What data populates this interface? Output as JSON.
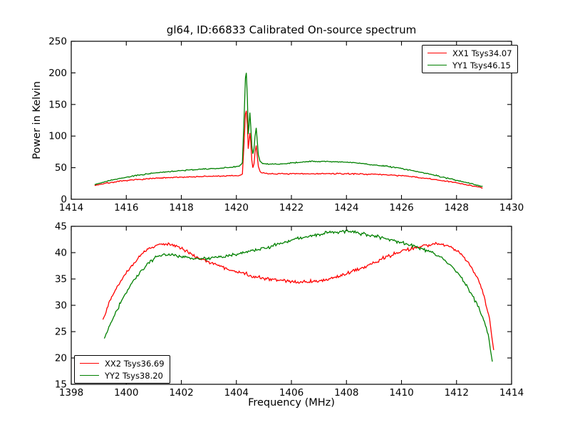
{
  "figure": {
    "title": "gl64, ID:66833 Calibrated On-source spectrum",
    "background_color": "#ffffff",
    "text_color": "#000000"
  },
  "chart_data": [
    {
      "type": "line",
      "position": "top",
      "xlabel": "",
      "ylabel": "Power in Kelvin",
      "xlim": [
        1414,
        1430
      ],
      "ylim": [
        0,
        250
      ],
      "xticks": [
        1414,
        1416,
        1418,
        1420,
        1422,
        1424,
        1426,
        1428,
        1430
      ],
      "yticks": [
        0,
        50,
        100,
        150,
        200,
        250
      ],
      "grid": false,
      "legend": {
        "position": "top-right"
      },
      "series": [
        {
          "name": "XX1 Tsys34.07",
          "color": "#ff0000",
          "noise": 0.45,
          "points": [
            [
              1414.85,
              22
            ],
            [
              1415.2,
              25
            ],
            [
              1415.6,
              27.5
            ],
            [
              1416.0,
              29.5
            ],
            [
              1416.5,
              31.5
            ],
            [
              1417.0,
              33
            ],
            [
              1417.5,
              34
            ],
            [
              1418.0,
              35
            ],
            [
              1418.6,
              35.8
            ],
            [
              1419.2,
              36.5
            ],
            [
              1419.8,
              37
            ],
            [
              1420.1,
              37.5
            ],
            [
              1420.22,
              40
            ],
            [
              1420.28,
              90
            ],
            [
              1420.33,
              135
            ],
            [
              1420.36,
              140
            ],
            [
              1420.4,
              118
            ],
            [
              1420.43,
              80
            ],
            [
              1420.46,
              92
            ],
            [
              1420.49,
              105
            ],
            [
              1420.52,
              93
            ],
            [
              1420.56,
              62
            ],
            [
              1420.6,
              50
            ],
            [
              1420.64,
              56
            ],
            [
              1420.68,
              75
            ],
            [
              1420.72,
              85
            ],
            [
              1420.76,
              68
            ],
            [
              1420.8,
              52
            ],
            [
              1420.86,
              44
            ],
            [
              1420.95,
              41.5
            ],
            [
              1421.2,
              40.5
            ],
            [
              1421.6,
              40.3
            ],
            [
              1422.0,
              40.2
            ],
            [
              1422.6,
              40.3
            ],
            [
              1423.2,
              40.5
            ],
            [
              1423.8,
              40.4
            ],
            [
              1424.4,
              40.2
            ],
            [
              1425.0,
              39.5
            ],
            [
              1425.6,
              38.5
            ],
            [
              1426.2,
              36.5
            ],
            [
              1426.8,
              33.5
            ],
            [
              1427.4,
              30
            ],
            [
              1428.0,
              26
            ],
            [
              1428.5,
              22
            ],
            [
              1428.95,
              18
            ]
          ]
        },
        {
          "name": "YY1 Tsys46.15",
          "color": "#008000",
          "noise": 0.45,
          "points": [
            [
              1414.85,
              23.5
            ],
            [
              1415.2,
              27.5
            ],
            [
              1415.6,
              31.5
            ],
            [
              1416.0,
              35
            ],
            [
              1416.5,
              38.5
            ],
            [
              1417.0,
              41.5
            ],
            [
              1417.5,
              43.5
            ],
            [
              1418.0,
              45.5
            ],
            [
              1418.6,
              47
            ],
            [
              1419.2,
              48.5
            ],
            [
              1419.8,
              50.5
            ],
            [
              1420.1,
              52
            ],
            [
              1420.22,
              58
            ],
            [
              1420.28,
              130
            ],
            [
              1420.33,
              192
            ],
            [
              1420.36,
              200
            ],
            [
              1420.4,
              160
            ],
            [
              1420.43,
              103
            ],
            [
              1420.46,
              116
            ],
            [
              1420.49,
              137
            ],
            [
              1420.52,
              118
            ],
            [
              1420.56,
              85
            ],
            [
              1420.6,
              72
            ],
            [
              1420.64,
              80
            ],
            [
              1420.68,
              100
            ],
            [
              1420.72,
              113
            ],
            [
              1420.76,
              92
            ],
            [
              1420.8,
              70
            ],
            [
              1420.86,
              60
            ],
            [
              1420.95,
              56.5
            ],
            [
              1421.2,
              55.5
            ],
            [
              1421.6,
              56
            ],
            [
              1422.0,
              57.5
            ],
            [
              1422.6,
              59.5
            ],
            [
              1423.0,
              60
            ],
            [
              1423.5,
              59.5
            ],
            [
              1424.0,
              58.5
            ],
            [
              1424.5,
              57
            ],
            [
              1425.0,
              54.5
            ],
            [
              1425.5,
              52
            ],
            [
              1426.0,
              48.5
            ],
            [
              1426.5,
              44.5
            ],
            [
              1427.0,
              40
            ],
            [
              1427.5,
              35
            ],
            [
              1428.0,
              30
            ],
            [
              1428.5,
              25
            ],
            [
              1428.95,
              20.5
            ]
          ]
        }
      ]
    },
    {
      "type": "line",
      "position": "bottom",
      "xlabel": "Frequency (MHz)",
      "ylabel": "",
      "xlim": [
        1398,
        1414
      ],
      "ylim": [
        15,
        45
      ],
      "xticks": [
        1398,
        1400,
        1402,
        1404,
        1406,
        1408,
        1410,
        1412,
        1414
      ],
      "yticks": [
        15,
        20,
        25,
        30,
        35,
        40,
        45
      ],
      "grid": false,
      "legend": {
        "position": "bottom-left"
      },
      "series": [
        {
          "name": "XX2 Tsys36.69",
          "color": "#ff0000",
          "noise": 0.17,
          "points": [
            [
              1399.15,
              27.3
            ],
            [
              1399.3,
              29.5
            ],
            [
              1399.5,
              31.8
            ],
            [
              1399.7,
              33.8
            ],
            [
              1399.95,
              35.8
            ],
            [
              1400.2,
              37.6
            ],
            [
              1400.5,
              39.3
            ],
            [
              1400.8,
              40.7
            ],
            [
              1401.1,
              41.4
            ],
            [
              1401.35,
              41.7
            ],
            [
              1401.6,
              41.4
            ],
            [
              1401.85,
              41.2
            ],
            [
              1402.1,
              40.5
            ],
            [
              1402.35,
              39.8
            ],
            [
              1402.6,
              39.1
            ],
            [
              1403.0,
              38.3
            ],
            [
              1403.5,
              37.3
            ],
            [
              1404.0,
              36.4
            ],
            [
              1404.5,
              35.7
            ],
            [
              1405.0,
              35.1
            ],
            [
              1405.5,
              34.8
            ],
            [
              1406.0,
              34.5
            ],
            [
              1406.5,
              34.4
            ],
            [
              1407.0,
              34.6
            ],
            [
              1407.5,
              35.1
            ],
            [
              1408.0,
              35.9
            ],
            [
              1408.5,
              37.0
            ],
            [
              1409.0,
              38.1
            ],
            [
              1409.5,
              39.3
            ],
            [
              1410.0,
              40.3
            ],
            [
              1410.5,
              41.0
            ],
            [
              1411.0,
              41.5
            ],
            [
              1411.35,
              41.7
            ],
            [
              1411.65,
              41.4
            ],
            [
              1411.95,
              40.6
            ],
            [
              1412.25,
              39.2
            ],
            [
              1412.55,
              37.2
            ],
            [
              1412.8,
              34.8
            ],
            [
              1413.0,
              31.8
            ],
            [
              1413.2,
              27.5
            ],
            [
              1413.35,
              21.5
            ]
          ]
        },
        {
          "name": "YY2 Tsys38.20",
          "color": "#008000",
          "noise": 0.17,
          "points": [
            [
              1399.2,
              23.7
            ],
            [
              1399.4,
              26.2
            ],
            [
              1399.65,
              29.0
            ],
            [
              1399.9,
              31.6
            ],
            [
              1400.2,
              34.2
            ],
            [
              1400.5,
              36.4
            ],
            [
              1400.8,
              38.1
            ],
            [
              1401.1,
              39.2
            ],
            [
              1401.4,
              39.7
            ],
            [
              1401.7,
              39.6
            ],
            [
              1402.0,
              39.2
            ],
            [
              1402.4,
              38.9
            ],
            [
              1402.8,
              38.9
            ],
            [
              1403.3,
              39.1
            ],
            [
              1403.8,
              39.5
            ],
            [
              1404.3,
              40.0
            ],
            [
              1404.8,
              40.6
            ],
            [
              1405.3,
              41.3
            ],
            [
              1405.8,
              42.0
            ],
            [
              1406.3,
              42.7
            ],
            [
              1406.8,
              43.3
            ],
            [
              1407.3,
              43.7
            ],
            [
              1407.8,
              44.0
            ],
            [
              1408.2,
              44.0
            ],
            [
              1408.6,
              43.6
            ],
            [
              1409.0,
              43.2
            ],
            [
              1409.5,
              42.6
            ],
            [
              1410.0,
              41.9
            ],
            [
              1410.5,
              41.2
            ],
            [
              1410.9,
              40.5
            ],
            [
              1411.2,
              39.8
            ],
            [
              1411.5,
              38.9
            ],
            [
              1411.8,
              37.6
            ],
            [
              1412.1,
              35.8
            ],
            [
              1412.4,
              33.5
            ],
            [
              1412.7,
              30.8
            ],
            [
              1412.95,
              27.8
            ],
            [
              1413.15,
              24.5
            ],
            [
              1413.3,
              19.3
            ]
          ]
        }
      ]
    }
  ]
}
